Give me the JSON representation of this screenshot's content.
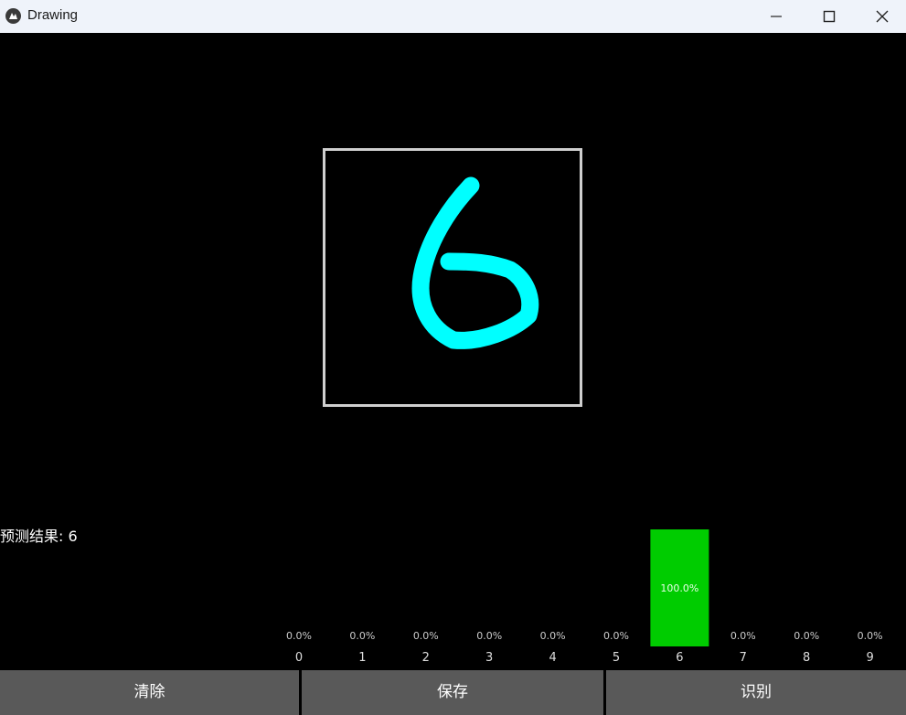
{
  "window": {
    "title": "Drawing",
    "icon": "kivy-logo-icon",
    "controls": [
      "minimize-icon",
      "maximize-icon",
      "close-icon"
    ]
  },
  "prediction": {
    "label": "预测结果: 6"
  },
  "colors": {
    "stroke": "#00ffff",
    "bar": "#00cc00",
    "canvas_border": "#cfcfcf",
    "button_bg": "#595959"
  },
  "chart_data": {
    "type": "bar",
    "categories": [
      "0",
      "1",
      "2",
      "3",
      "4",
      "5",
      "6",
      "7",
      "8",
      "9"
    ],
    "values": [
      0,
      0,
      0,
      0,
      0,
      0,
      100,
      0,
      0,
      0
    ],
    "value_labels": [
      "0.0%",
      "0.0%",
      "0.0%",
      "0.0%",
      "0.0%",
      "0.0%",
      "100.0%",
      "0.0%",
      "0.0%",
      "0.0%"
    ],
    "ylim": [
      0,
      100
    ],
    "grid": false,
    "title": "",
    "xlabel": "",
    "ylabel": ""
  },
  "buttons": {
    "clear": "清除",
    "save": "保存",
    "recognize": "识别"
  }
}
